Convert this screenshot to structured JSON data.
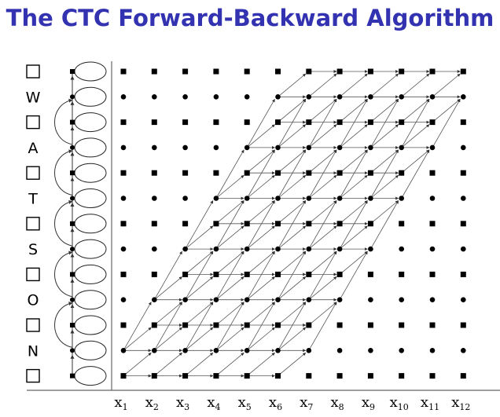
{
  "title": "The CTC Forward-Backward Algorithm",
  "rows": [
    "□",
    "N",
    "□",
    "O",
    "□",
    "S",
    "□",
    "T",
    "□",
    "A",
    "□",
    "W",
    "□"
  ],
  "x_labels": [
    {
      "base": "x",
      "sub": "1"
    },
    {
      "base": "x",
      "sub": "2"
    },
    {
      "base": "x",
      "sub": "3"
    },
    {
      "base": "x",
      "sub": "4"
    },
    {
      "base": "x",
      "sub": "5"
    },
    {
      "base": "x",
      "sub": "6"
    },
    {
      "base": "x",
      "sub": "7"
    },
    {
      "base": "x",
      "sub": "8"
    },
    {
      "base": "x",
      "sub": "9"
    },
    {
      "base": "x",
      "sub": "10"
    },
    {
      "base": "x",
      "sub": "11"
    },
    {
      "base": "x",
      "sub": "12"
    }
  ],
  "colors": {
    "title": "#3333b2",
    "ink": "#000000",
    "edge": "#555555"
  }
}
